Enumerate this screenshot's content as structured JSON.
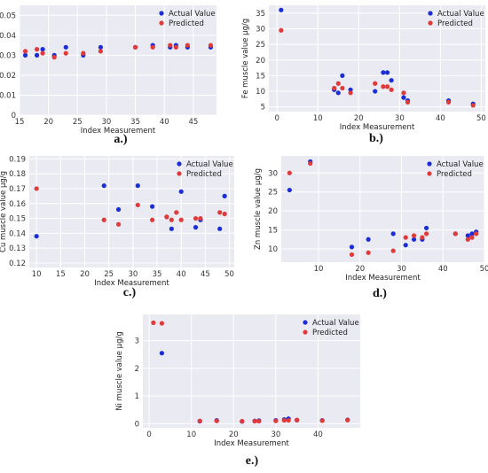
{
  "chart_data": [
    {
      "type": "scatter",
      "caption": "a.)",
      "xlabel": "Index Measurement",
      "ylabel": "Cd muscle value µg/g",
      "xlim": [
        15,
        49
      ],
      "ylim": [
        0,
        0.055
      ],
      "xticks": [
        15,
        20,
        25,
        30,
        35,
        40,
        45
      ],
      "yticks": [
        0,
        0.01,
        0.02,
        0.03,
        0.04,
        0.05
      ],
      "ytick_labels": [
        "0",
        "0.01",
        "0.02",
        "0.03",
        "0.04",
        "0.05"
      ],
      "grid": true,
      "legend": "top-right",
      "series": [
        {
          "name": "Actual Value",
          "color": "#1a2dd6",
          "x": [
            16,
            18,
            19,
            21,
            23,
            26,
            29,
            35,
            38,
            41,
            42,
            44,
            48
          ],
          "y": [
            0.03,
            0.03,
            0.033,
            0.03,
            0.034,
            0.03,
            0.034,
            0.034,
            0.035,
            0.034,
            0.035,
            0.034,
            0.034
          ]
        },
        {
          "name": "Predicted",
          "color": "#e03a3a",
          "x": [
            16,
            18,
            19,
            21,
            23,
            26,
            29,
            35,
            38,
            41,
            42,
            44,
            48
          ],
          "y": [
            0.032,
            0.033,
            0.031,
            0.029,
            0.031,
            0.031,
            0.032,
            0.034,
            0.034,
            0.035,
            0.034,
            0.035,
            0.035
          ]
        }
      ]
    },
    {
      "type": "scatter",
      "caption": "b.)",
      "xlabel": "Index Measurement",
      "ylabel": "Fe muscle value µg/g",
      "xlim": [
        -2,
        51
      ],
      "ylim": [
        3.5,
        37.5
      ],
      "xticks": [
        0,
        10,
        20,
        30,
        40,
        50
      ],
      "yticks": [
        5,
        10,
        15,
        20,
        25,
        30,
        35
      ],
      "ytick_labels": [
        "5",
        "10",
        "15",
        "20",
        "25",
        "30",
        "35"
      ],
      "grid": true,
      "legend": "top-right",
      "series": [
        {
          "name": "Actual Value",
          "color": "#1a2dd6",
          "x": [
            1,
            14,
            15,
            16,
            18,
            24,
            26,
            27,
            28,
            31,
            32,
            42,
            48
          ],
          "y": [
            36,
            10.5,
            9.5,
            15,
            10.5,
            10,
            16,
            16,
            13.5,
            8,
            7,
            7,
            6
          ]
        },
        {
          "name": "Predicted",
          "color": "#e03a3a",
          "x": [
            1,
            14,
            15,
            16,
            18,
            24,
            26,
            27,
            28,
            31,
            32,
            42,
            48
          ],
          "y": [
            29.5,
            11,
            12.5,
            11,
            9.5,
            12.5,
            11.5,
            11.5,
            10.5,
            9.5,
            6.5,
            6.5,
            5.5
          ]
        }
      ]
    },
    {
      "type": "scatter",
      "caption": "c.)",
      "xlabel": "Index Measurement",
      "ylabel": "Cu muscle value µg/g",
      "xlim": [
        8.5,
        51
      ],
      "ylim": [
        0.117,
        0.192
      ],
      "xticks": [
        10,
        15,
        20,
        25,
        30,
        35,
        40,
        45,
        50
      ],
      "yticks": [
        0.12,
        0.13,
        0.14,
        0.15,
        0.16,
        0.17,
        0.18,
        0.19
      ],
      "ytick_labels": [
        "0.12",
        "0.13",
        "0.14",
        "0.15",
        "0.16",
        "0.17",
        "0.18",
        "0.19"
      ],
      "grid": true,
      "legend": "top-right",
      "series": [
        {
          "name": "Actual Value",
          "color": "#1a2dd6",
          "x": [
            10,
            24,
            27,
            31,
            34,
            37,
            38,
            40,
            43,
            44,
            48,
            49
          ],
          "y": [
            0.138,
            0.172,
            0.156,
            0.172,
            0.158,
            0.151,
            0.143,
            0.168,
            0.144,
            0.149,
            0.143,
            0.165
          ]
        },
        {
          "name": "Predicted",
          "color": "#e03a3a",
          "x": [
            10,
            24,
            27,
            31,
            34,
            37,
            38,
            39,
            40,
            43,
            44,
            48,
            49
          ],
          "y": [
            0.17,
            0.149,
            0.146,
            0.159,
            0.149,
            0.151,
            0.149,
            0.154,
            0.149,
            0.15,
            0.15,
            0.154,
            0.153
          ]
        }
      ]
    },
    {
      "type": "scatter",
      "caption": "d.)",
      "xlabel": "Index Measurement",
      "ylabel": "Zn muscle value µg/g",
      "xlim": [
        1,
        50
      ],
      "ylim": [
        6.5,
        34.5
      ],
      "xticks": [
        10,
        20,
        30,
        40,
        50
      ],
      "yticks": [
        10,
        15,
        20,
        25,
        30
      ],
      "ytick_labels": [
        "10",
        "15",
        "20",
        "25",
        "30"
      ],
      "grid": true,
      "legend": "top-right",
      "series": [
        {
          "name": "Actual Value",
          "color": "#1a2dd6",
          "x": [
            3,
            8,
            18,
            22,
            28,
            31,
            33,
            35,
            36,
            43,
            46,
            47,
            48
          ],
          "y": [
            25.5,
            33,
            10.5,
            12.5,
            14,
            11,
            12.5,
            12.5,
            15.5,
            14,
            13.5,
            14,
            14.5
          ]
        },
        {
          "name": "Predicted",
          "color": "#e03a3a",
          "x": [
            3,
            8,
            18,
            22,
            28,
            31,
            33,
            35,
            36,
            43,
            46,
            47,
            48
          ],
          "y": [
            30,
            32.5,
            8.5,
            9,
            9.5,
            13,
            13.5,
            13,
            14,
            14,
            12.5,
            13,
            14
          ]
        }
      ]
    },
    {
      "type": "scatter",
      "caption": "e.)",
      "xlabel": "Index Measurement",
      "ylabel": "Ni muscle value µg/g",
      "xlim": [
        -1.5,
        50
      ],
      "ylim": [
        -0.15,
        3.95
      ],
      "xticks": [
        0,
        10,
        20,
        30,
        40
      ],
      "yticks": [
        0,
        1,
        2,
        3
      ],
      "ytick_labels": [
        "0",
        "1",
        "2",
        "3"
      ],
      "grid": true,
      "legend": "top-right",
      "series": [
        {
          "name": "Actual Value",
          "color": "#1a2dd6",
          "x": [
            3,
            12,
            16,
            22,
            25,
            26,
            30,
            32,
            33,
            35,
            41,
            47
          ],
          "y": [
            2.55,
            0.09,
            0.12,
            0.08,
            0.1,
            0.11,
            0.12,
            0.15,
            0.18,
            0.13,
            0.12,
            0.14
          ]
        },
        {
          "name": "Predicted",
          "color": "#e03a3a",
          "x": [
            1,
            3,
            12,
            16,
            22,
            25,
            26,
            30,
            32,
            33,
            35,
            41,
            47
          ],
          "y": [
            3.65,
            3.63,
            0.1,
            0.1,
            0.09,
            0.09,
            0.09,
            0.1,
            0.12,
            0.12,
            0.13,
            0.11,
            0.13
          ]
        }
      ]
    }
  ]
}
